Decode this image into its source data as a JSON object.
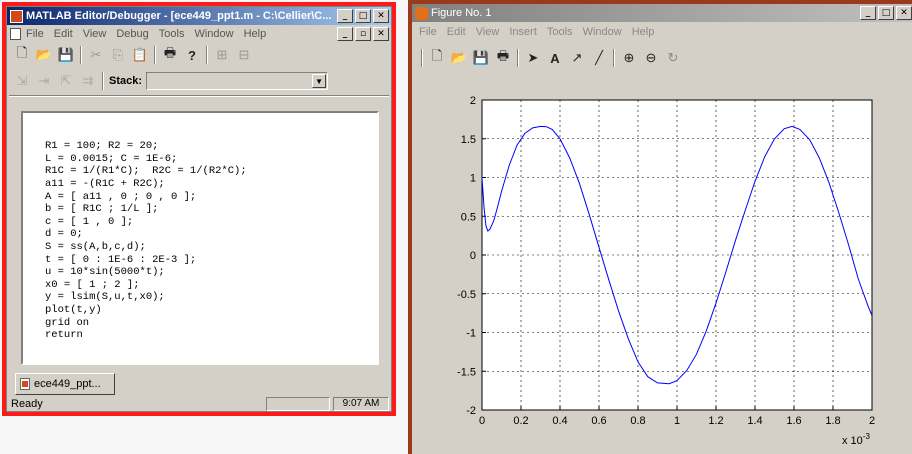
{
  "editor": {
    "title": "MATLAB Editor/Debugger - [ece449_ppt1.m - C:\\Cellier\\C...",
    "menu": [
      "File",
      "Edit",
      "View",
      "Debug",
      "Tools",
      "Window",
      "Help"
    ],
    "stack_label": "Stack:",
    "stack_value": "",
    "code_lines": [
      "R1 = 100; R2 = 20;",
      "L = 0.0015; C = 1E-6;",
      "R1C = 1/(R1*C);  R2C = 1/(R2*C);",
      "a11 = -(R1C + R2C);",
      "A = [ a11 , 0 ; 0 , 0 ];",
      "b = [ R1C ; 1/L ];",
      "c = [ 1 , 0 ];",
      "d = 0;",
      "S = ss(A,b,c,d);",
      "t = [ 0 : 1E-6 : 2E-3 ];",
      "u = 10*sin(5000*t);",
      "x0 = [ 1 ; 2 ];",
      "y = lsim(S,u,t,x0);",
      "plot(t,y)",
      "grid on",
      "return"
    ],
    "doc_tab": "ece449_ppt...",
    "status_text": "Ready",
    "clock": "9:07 AM",
    "highlight_color": "#ff0000",
    "titlebar_color": "#0a246a"
  },
  "figure": {
    "title": "Figure No. 1",
    "menu": [
      "File",
      "Edit",
      "View",
      "Insert",
      "Tools",
      "Window",
      "Help"
    ],
    "exponent_label": "x 10",
    "exponent_power": "-3"
  },
  "chart_data": {
    "type": "line",
    "title": "",
    "xlabel": "",
    "ylabel": "",
    "xlim": [
      0,
      2
    ],
    "ylim": [
      -2,
      2
    ],
    "grid": true,
    "x_ticks": [
      "0",
      "0.2",
      "0.4",
      "0.6",
      "0.8",
      "1",
      "1.2",
      "1.4",
      "1.6",
      "1.8",
      "2"
    ],
    "y_ticks": [
      "2",
      "1.5",
      "1",
      "0.5",
      "0",
      "-0.5",
      "-1",
      "-1.5",
      "-2"
    ],
    "series": [
      {
        "color": "#0000ff",
        "x": [
          0,
          0.01,
          0.02,
          0.03,
          0.04,
          0.06,
          0.08,
          0.1,
          0.14,
          0.18,
          0.22,
          0.26,
          0.3,
          0.33,
          0.36,
          0.4,
          0.45,
          0.5,
          0.55,
          0.6,
          0.65,
          0.7,
          0.75,
          0.8,
          0.85,
          0.9,
          0.96,
          1.0,
          1.05,
          1.1,
          1.15,
          1.2,
          1.25,
          1.3,
          1.35,
          1.4,
          1.45,
          1.5,
          1.55,
          1.59,
          1.63,
          1.68,
          1.73,
          1.78,
          1.83,
          1.88,
          1.93,
          1.98,
          2.0
        ],
        "y": [
          1.0,
          0.62,
          0.38,
          0.31,
          0.33,
          0.44,
          0.62,
          0.82,
          1.16,
          1.42,
          1.57,
          1.64,
          1.66,
          1.655,
          1.62,
          1.5,
          1.25,
          0.92,
          0.52,
          0.1,
          -0.32,
          -0.72,
          -1.08,
          -1.38,
          -1.57,
          -1.65,
          -1.66,
          -1.62,
          -1.49,
          -1.28,
          -0.98,
          -0.62,
          -0.22,
          0.19,
          0.58,
          0.95,
          1.27,
          1.5,
          1.63,
          1.66,
          1.62,
          1.49,
          1.25,
          0.93,
          0.54,
          0.13,
          -0.31,
          -0.66,
          -0.78
        ]
      }
    ]
  }
}
